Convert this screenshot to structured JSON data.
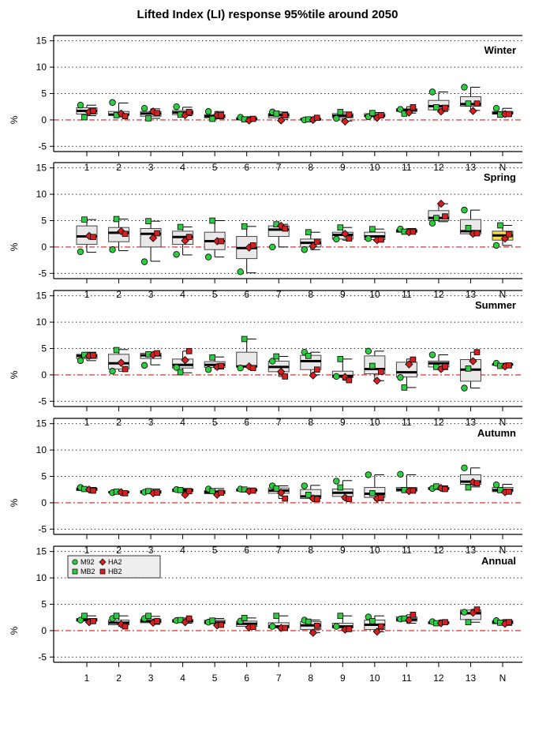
{
  "title": "Lifted Index (LI) response 95%tile around 2050",
  "legend": [
    {
      "label": "M92",
      "shape": "circle",
      "color": "#2ecc40"
    },
    {
      "label": "MB2",
      "shape": "square",
      "color": "#2ecc40"
    },
    {
      "label": "HA2",
      "shape": "diamond",
      "color": "#d42020"
    },
    {
      "label": "HB2",
      "shape": "square",
      "color": "#d42020"
    }
  ],
  "colors": {
    "box_fill": "#e8e8e8",
    "box_fill_highlight": "#f5e040",
    "zero_line": "#cc2222",
    "green": "#2ecc40",
    "red": "#d42020"
  },
  "chart_data": {
    "type": "box",
    "ylabel": "%",
    "categories": [
      "1",
      "2",
      "3",
      "4",
      "5",
      "6",
      "7",
      "8",
      "9",
      "10",
      "11",
      "12",
      "13",
      "N"
    ],
    "ylim": [
      -6,
      16
    ],
    "yticks": [
      -5,
      0,
      5,
      10,
      15
    ],
    "grid": "horizontal dotted",
    "reference_line": 0,
    "series_names": [
      "M92",
      "MB2",
      "HA2",
      "HB2"
    ],
    "panels": [
      {
        "season": "Winter",
        "boxes": [
          [
            0.8,
            1.1,
            1.7,
            2.3,
            2.8
          ],
          [
            0.6,
            0.9,
            1.0,
            1.6,
            3.2
          ],
          [
            0.3,
            0.7,
            1.2,
            1.6,
            2.1
          ],
          [
            0.8,
            1.0,
            1.4,
            1.8,
            2.4
          ],
          [
            0.2,
            0.4,
            0.7,
            1.0,
            1.6
          ],
          [
            -0.1,
            0.0,
            0.2,
            0.4,
            0.6
          ],
          [
            0.1,
            0.4,
            0.9,
            1.2,
            1.5
          ],
          [
            0.0,
            0.0,
            0.1,
            0.3,
            0.5
          ],
          [
            -0.2,
            0.4,
            0.8,
            1.2,
            1.5
          ],
          [
            0.4,
            0.6,
            0.8,
            1.2,
            1.4
          ],
          [
            1.3,
            1.6,
            1.9,
            2.1,
            2.5
          ],
          [
            1.6,
            1.9,
            2.6,
            3.7,
            5.3
          ],
          [
            1.8,
            2.6,
            3.0,
            4.4,
            6.2
          ],
          [
            1.0,
            1.1,
            1.3,
            1.6,
            2.2
          ]
        ],
        "points": [
          [
            2.8,
            0.5,
            1.5,
            1.7
          ],
          [
            3.3,
            0.9,
            1.2,
            0.7
          ],
          [
            2.2,
            0.3,
            1.6,
            1.3
          ],
          [
            2.5,
            1.0,
            0.9,
            1.5
          ],
          [
            1.6,
            0.2,
            0.9,
            0.9
          ],
          [
            0.5,
            0.1,
            -0.1,
            0.2
          ],
          [
            1.5,
            1.2,
            -0.1,
            0.9
          ],
          [
            0.0,
            0.1,
            0.0,
            0.4
          ],
          [
            0.3,
            1.5,
            -0.3,
            1.0
          ],
          [
            0.6,
            1.3,
            0.4,
            0.9
          ],
          [
            2.0,
            1.2,
            1.4,
            2.4
          ],
          [
            5.3,
            2.4,
            1.6,
            2.3
          ],
          [
            6.2,
            3.1,
            1.7,
            3.1
          ],
          [
            2.2,
            1.0,
            1.1,
            1.1
          ]
        ]
      },
      {
        "season": "Spring",
        "boxes": [
          [
            -1.0,
            0.5,
            2.0,
            4.0,
            5.2
          ],
          [
            -0.7,
            1.0,
            2.7,
            3.7,
            5.3
          ],
          [
            -2.7,
            0.0,
            2.5,
            3.5,
            4.9
          ],
          [
            -1.5,
            0.5,
            1.9,
            3.0,
            3.8
          ],
          [
            -1.9,
            -0.5,
            1.1,
            2.8,
            5.0
          ],
          [
            -4.9,
            -2.2,
            -0.2,
            2.0,
            3.9
          ],
          [
            0.0,
            2.0,
            3.3,
            4.0,
            4.3
          ],
          [
            -0.5,
            0.0,
            0.8,
            1.5,
            2.8
          ],
          [
            1.3,
            1.5,
            2.3,
            2.8,
            3.7
          ],
          [
            1.2,
            1.4,
            2.0,
            2.8,
            3.4
          ],
          [
            2.7,
            2.8,
            3.0,
            3.3,
            3.5
          ],
          [
            4.8,
            5.0,
            5.5,
            6.9,
            8.2
          ],
          [
            2.2,
            2.5,
            3.0,
            5.2,
            7.0
          ],
          [
            0.3,
            1.3,
            2.2,
            3.0,
            4.1
          ]
        ],
        "points": [
          [
            -0.9,
            5.2,
            2.1,
            1.9
          ],
          [
            -0.5,
            5.3,
            3.0,
            2.5
          ],
          [
            -2.8,
            4.9,
            1.7,
            2.6
          ],
          [
            -1.4,
            3.8,
            1.2,
            1.9
          ],
          [
            -1.9,
            5.0,
            1.1,
            1.1
          ],
          [
            -4.7,
            3.9,
            -0.1,
            0.3
          ],
          [
            0.0,
            4.3,
            4.0,
            3.5
          ],
          [
            -0.5,
            2.8,
            0.2,
            1.0
          ],
          [
            1.5,
            3.7,
            2.5,
            1.6
          ],
          [
            1.6,
            3.4,
            1.3,
            1.4
          ],
          [
            3.4,
            2.9,
            2.8,
            2.9
          ],
          [
            4.5,
            5.5,
            8.2,
            5.8
          ],
          [
            7.0,
            3.6,
            2.5,
            2.6
          ],
          [
            0.3,
            4.1,
            1.6,
            2.4
          ]
        ]
      },
      {
        "season": "Summer",
        "boxes": [
          [
            2.7,
            3.1,
            3.6,
            3.9,
            4.3
          ],
          [
            0.7,
            1.1,
            2.2,
            3.9,
            4.8
          ],
          [
            1.9,
            3.1,
            3.7,
            4.1,
            4.3
          ],
          [
            0.4,
            1.3,
            1.9,
            3.0,
            4.5
          ],
          [
            1.1,
            1.4,
            1.9,
            2.5,
            3.4
          ],
          [
            1.3,
            1.5,
            1.6,
            4.3,
            6.8
          ],
          [
            -0.3,
            0.6,
            1.5,
            2.6,
            3.5
          ],
          [
            0.0,
            1.0,
            2.6,
            3.7,
            4.3
          ],
          [
            -1.0,
            -0.5,
            -0.2,
            0.7,
            3.0
          ],
          [
            -1.1,
            0.2,
            1.1,
            3.6,
            4.5
          ],
          [
            -2.4,
            -0.4,
            0.5,
            2.4,
            3.0
          ],
          [
            1.0,
            1.5,
            2.2,
            2.6,
            3.8
          ],
          [
            -2.5,
            -1.2,
            1.0,
            2.9,
            4.3
          ],
          [
            1.7,
            1.8,
            2.0,
            2.1,
            2.2
          ]
        ],
        "points": [
          [
            2.7,
            3.8,
            3.6,
            3.7
          ],
          [
            0.7,
            4.7,
            2.3,
            1.1
          ],
          [
            1.8,
            3.9,
            3.8,
            4.1
          ],
          [
            1.4,
            0.5,
            2.8,
            4.5
          ],
          [
            1.0,
            3.3,
            1.5,
            1.7
          ],
          [
            1.3,
            6.8,
            1.6,
            1.3
          ],
          [
            2.6,
            3.5,
            0.6,
            -0.3
          ],
          [
            4.3,
            3.6,
            -0.1,
            1.0
          ],
          [
            -0.3,
            3.0,
            -0.4,
            -1.0
          ],
          [
            4.5,
            1.7,
            -1.1,
            0.6
          ],
          [
            -0.5,
            -2.4,
            2.0,
            2.9
          ],
          [
            3.8,
            1.5,
            1.1,
            1.6
          ],
          [
            -2.5,
            1.2,
            2.6,
            4.3
          ],
          [
            2.2,
            1.7,
            1.6,
            1.8
          ]
        ]
      },
      {
        "season": "Autumn",
        "boxes": [
          [
            2.2,
            2.3,
            2.6,
            2.8,
            2.9
          ],
          [
            1.8,
            1.9,
            2.0,
            2.1,
            2.2
          ],
          [
            1.7,
            1.8,
            2.0,
            2.3,
            2.6
          ],
          [
            1.7,
            2.1,
            2.4,
            2.6,
            2.7
          ],
          [
            1.5,
            1.7,
            2.0,
            2.3,
            2.7
          ],
          [
            2.1,
            2.2,
            2.4,
            2.6,
            2.7
          ],
          [
            0.8,
            1.8,
            2.3,
            2.8,
            3.2
          ],
          [
            0.5,
            0.8,
            1.2,
            2.5,
            3.3
          ],
          [
            0.6,
            1.2,
            1.9,
            2.6,
            4.2
          ],
          [
            0.4,
            1.0,
            1.7,
            2.9,
            5.3
          ],
          [
            2.0,
            2.2,
            2.5,
            2.9,
            5.3
          ],
          [
            2.4,
            2.5,
            2.7,
            2.9,
            3.2
          ],
          [
            3.0,
            3.5,
            4.0,
            5.3,
            6.6
          ],
          [
            1.8,
            2.1,
            2.4,
            2.9,
            3.5
          ]
        ],
        "points": [
          [
            2.9,
            2.6,
            2.5,
            2.3
          ],
          [
            1.9,
            2.1,
            2.0,
            1.8
          ],
          [
            2.0,
            2.2,
            1.8,
            1.9
          ],
          [
            2.5,
            2.4,
            1.5,
            2.2
          ],
          [
            2.6,
            2.2,
            1.5,
            1.9
          ],
          [
            2.6,
            2.5,
            2.2,
            2.3
          ],
          [
            3.2,
            2.7,
            1.9,
            0.8
          ],
          [
            3.2,
            1.5,
            0.8,
            0.7
          ],
          [
            4.1,
            2.9,
            1.0,
            0.7
          ],
          [
            5.3,
            1.8,
            0.8,
            1.0
          ],
          [
            5.4,
            2.4,
            2.2,
            2.3
          ],
          [
            2.7,
            3.1,
            2.8,
            2.6
          ],
          [
            6.6,
            2.9,
            3.9,
            3.7
          ],
          [
            3.4,
            2.4,
            2.0,
            2.1
          ]
        ]
      },
      {
        "season": "Annual",
        "boxes": [
          [
            1.6,
            1.8,
            2.0,
            2.3,
            2.8
          ],
          [
            0.8,
            1.1,
            1.5,
            2.0,
            2.8
          ],
          [
            1.2,
            1.5,
            1.8,
            2.2,
            2.7
          ],
          [
            1.4,
            1.6,
            1.8,
            2.1,
            2.4
          ],
          [
            1.0,
            1.3,
            1.6,
            2.0,
            2.3
          ],
          [
            0.5,
            0.8,
            1.3,
            1.8,
            2.4
          ],
          [
            0.3,
            0.5,
            0.8,
            1.5,
            2.8
          ],
          [
            -0.4,
            0.2,
            1.0,
            1.7,
            2.0
          ],
          [
            0.0,
            0.5,
            0.8,
            1.4,
            2.8
          ],
          [
            -0.2,
            0.2,
            1.1,
            2.0,
            2.8
          ],
          [
            1.4,
            1.8,
            2.1,
            2.6,
            3.0
          ],
          [
            1.2,
            1.3,
            1.5,
            1.7,
            2.0
          ],
          [
            1.6,
            2.1,
            3.3,
            3.9,
            4.0
          ],
          [
            1.0,
            1.3,
            1.6,
            1.9,
            2.1
          ]
        ],
        "points": [
          [
            2.0,
            2.8,
            1.6,
            1.8
          ],
          [
            2.3,
            2.8,
            1.2,
            0.8
          ],
          [
            2.3,
            2.8,
            1.5,
            1.8
          ],
          [
            1.9,
            2.0,
            1.6,
            2.3
          ],
          [
            1.6,
            1.9,
            1.0,
            1.1
          ],
          [
            1.8,
            2.4,
            0.6,
            0.7
          ],
          [
            0.8,
            2.8,
            0.5,
            0.5
          ],
          [
            2.0,
            1.7,
            -0.4,
            0.9
          ],
          [
            0.8,
            2.8,
            0.2,
            0.3
          ],
          [
            2.6,
            1.8,
            -0.2,
            0.8
          ],
          [
            2.2,
            2.3,
            2.0,
            3.0
          ],
          [
            1.7,
            1.4,
            1.4,
            1.6
          ],
          [
            3.5,
            1.6,
            3.4,
            4.0
          ],
          [
            1.9,
            1.5,
            1.3,
            1.6
          ]
        ]
      }
    ]
  }
}
